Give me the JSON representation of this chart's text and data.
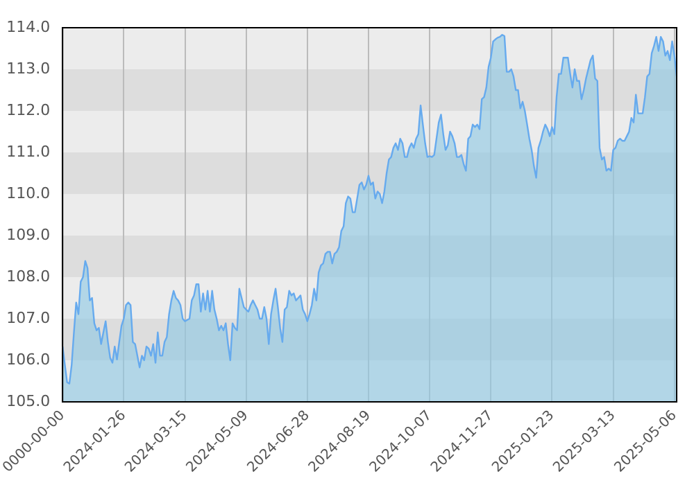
{
  "chart_data": {
    "type": "area",
    "categories": [
      "0000-00-00",
      null,
      null,
      null,
      null,
      null,
      null,
      null,
      null,
      null,
      null,
      null,
      null,
      null,
      null,
      null,
      null,
      null,
      null,
      null,
      null,
      null,
      null,
      null,
      null,
      null,
      null,
      "2024-01-26",
      null,
      null,
      null,
      null,
      null,
      null,
      null,
      null,
      null,
      null,
      null,
      null,
      null,
      null,
      null,
      null,
      null,
      null,
      null,
      null,
      null,
      null,
      null,
      null,
      null,
      null,
      "2024-03-15",
      null,
      null,
      null,
      null,
      null,
      null,
      null,
      null,
      null,
      null,
      null,
      null,
      null,
      null,
      null,
      null,
      null,
      null,
      null,
      null,
      null,
      null,
      null,
      null,
      null,
      null,
      "2024-05-09",
      null,
      null,
      null,
      null,
      null,
      null,
      null,
      null,
      null,
      null,
      null,
      null,
      null,
      null,
      null,
      null,
      null,
      null,
      null,
      null,
      null,
      null,
      null,
      null,
      null,
      null,
      "2024-06-28",
      null,
      null,
      null,
      null,
      null,
      null,
      null,
      null,
      null,
      null,
      null,
      null,
      null,
      null,
      null,
      null,
      null,
      null,
      null,
      null,
      null,
      null,
      null,
      null,
      null,
      null,
      "2024-08-19",
      null,
      null,
      null,
      null,
      null,
      null,
      null,
      null,
      null,
      null,
      null,
      null,
      null,
      null,
      null,
      null,
      null,
      null,
      null,
      null,
      null,
      null,
      null,
      null,
      null,
      null,
      "2024-10-07",
      null,
      null,
      null,
      null,
      null,
      null,
      null,
      null,
      null,
      null,
      null,
      null,
      null,
      null,
      null,
      null,
      null,
      null,
      null,
      null,
      null,
      null,
      null,
      null,
      null,
      null,
      "2024-11-27",
      null,
      null,
      null,
      null,
      null,
      null,
      null,
      null,
      null,
      null,
      null,
      null,
      null,
      null,
      null,
      null,
      null,
      null,
      null,
      null,
      null,
      null,
      null,
      null,
      null,
      null,
      "2025-01-23",
      null,
      null,
      null,
      null,
      null,
      null,
      null,
      null,
      null,
      null,
      null,
      null,
      null,
      null,
      null,
      null,
      null,
      null,
      null,
      null,
      null,
      null,
      null,
      null,
      null,
      null,
      "2025-03-13",
      null,
      null,
      null,
      null,
      null,
      null,
      null,
      null,
      null,
      null,
      null,
      null,
      null,
      null,
      null,
      null,
      null,
      null,
      null,
      null,
      null,
      null,
      null,
      null,
      null,
      null,
      "2025-05-06",
      null
    ],
    "series": [
      {
        "color": "#66aaee",
        "values": [
          106.33,
          105.89,
          105.47,
          105.44,
          105.89,
          106.67,
          107.39,
          107.11,
          107.89,
          108.0,
          108.39,
          108.22,
          107.44,
          107.5,
          106.89,
          106.72,
          106.78,
          106.39,
          106.67,
          106.94,
          106.44,
          106.06,
          105.94,
          106.33,
          106.02,
          106.44,
          106.83,
          107.0,
          107.33,
          107.39,
          107.33,
          106.44,
          106.39,
          106.11,
          105.83,
          106.11,
          106.0,
          106.33,
          106.28,
          106.11,
          106.39,
          105.94,
          106.67,
          106.11,
          106.11,
          106.44,
          106.56,
          107.11,
          107.44,
          107.67,
          107.5,
          107.44,
          107.33,
          107.0,
          106.94,
          106.97,
          107.0,
          107.44,
          107.56,
          107.83,
          107.83,
          107.17,
          107.61,
          107.22,
          107.67,
          107.17,
          107.67,
          107.22,
          107.0,
          106.72,
          106.83,
          106.72,
          106.89,
          106.39,
          106.0,
          106.89,
          106.78,
          106.72,
          107.72,
          107.5,
          107.28,
          107.22,
          107.17,
          107.33,
          107.44,
          107.33,
          107.22,
          107.0,
          107.0,
          107.28,
          107.0,
          106.39,
          107.11,
          107.44,
          107.72,
          107.28,
          106.78,
          106.44,
          107.22,
          107.28,
          107.67,
          107.56,
          107.61,
          107.44,
          107.5,
          107.56,
          107.22,
          107.11,
          106.94,
          107.11,
          107.33,
          107.72,
          107.44,
          108.11,
          108.28,
          108.33,
          108.56,
          108.61,
          108.61,
          108.33,
          108.56,
          108.61,
          108.72,
          109.11,
          109.22,
          109.78,
          109.94,
          109.89,
          109.56,
          109.56,
          109.89,
          110.22,
          110.28,
          110.11,
          110.22,
          110.44,
          110.22,
          110.28,
          109.89,
          110.06,
          110.0,
          109.78,
          110.06,
          110.5,
          110.83,
          110.89,
          111.11,
          111.22,
          111.06,
          111.33,
          111.22,
          110.89,
          110.89,
          111.11,
          111.22,
          111.11,
          111.33,
          111.44,
          112.13,
          111.67,
          111.22,
          110.89,
          110.91,
          110.89,
          110.94,
          111.33,
          111.72,
          111.91,
          111.44,
          111.06,
          111.17,
          111.5,
          111.39,
          111.22,
          110.89,
          110.89,
          110.94,
          110.72,
          110.56,
          111.33,
          111.39,
          111.67,
          111.61,
          111.67,
          111.56,
          112.28,
          112.33,
          112.56,
          113.06,
          113.28,
          113.67,
          113.72,
          113.76,
          113.78,
          113.83,
          113.8,
          112.94,
          112.94,
          113.0,
          112.83,
          112.5,
          112.5,
          112.06,
          112.22,
          112.0,
          111.67,
          111.33,
          111.06,
          110.67,
          110.39,
          111.11,
          111.28,
          111.5,
          111.67,
          111.56,
          111.39,
          111.61,
          111.44,
          112.33,
          112.89,
          112.89,
          113.28,
          113.28,
          113.28,
          112.89,
          112.56,
          113.0,
          112.72,
          112.72,
          112.28,
          112.5,
          112.78,
          113.0,
          113.22,
          113.33,
          112.78,
          112.72,
          111.11,
          110.83,
          110.89,
          110.56,
          110.61,
          110.56,
          111.06,
          111.11,
          111.28,
          111.33,
          111.28,
          111.28,
          111.39,
          111.5,
          111.83,
          111.72,
          112.39,
          111.94,
          111.94,
          111.94,
          112.33,
          112.83,
          112.89,
          113.39,
          113.56,
          113.78,
          113.44,
          113.78,
          113.67,
          113.33,
          113.44,
          113.22,
          113.67,
          113.33,
          112.83
        ]
      }
    ],
    "ylim": [
      105,
      114
    ],
    "yticks": [
      {
        "value": 105,
        "label": "105.0"
      },
      {
        "value": 106,
        "label": "106.0"
      },
      {
        "value": 107,
        "label": "107.0"
      },
      {
        "value": 108,
        "label": "108.0"
      },
      {
        "value": 109,
        "label": "109.0"
      },
      {
        "value": 110,
        "label": "110.0"
      },
      {
        "value": 111,
        "label": "111.0"
      },
      {
        "value": 112,
        "label": "112.0"
      },
      {
        "value": 113,
        "label": "113.0"
      },
      {
        "value": 114,
        "label": "114.0"
      }
    ],
    "grid": true,
    "legend": false
  }
}
